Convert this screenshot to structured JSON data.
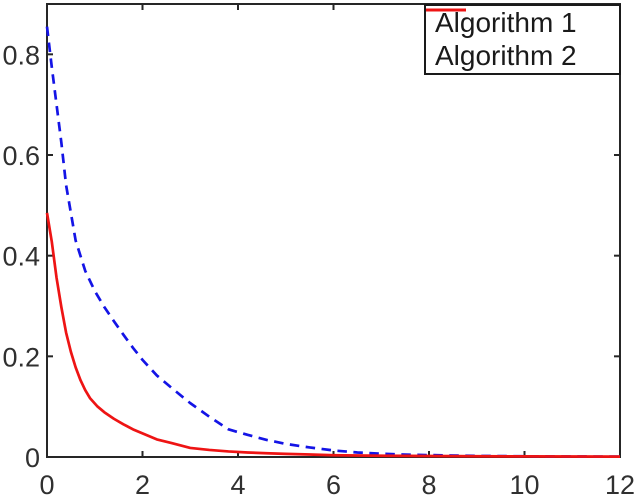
{
  "figure": {
    "background": "#ffffff"
  },
  "chart_data": {
    "type": "line",
    "title": "",
    "xlabel": "",
    "ylabel": "",
    "xlim": [
      0,
      12
    ],
    "ylim": [
      0,
      0.9
    ],
    "grid": false,
    "box": true,
    "tick_direction": "in",
    "axis_color": "#262626",
    "tick_label_color": "#303030",
    "tick_font_size": 27,
    "x_ticks": {
      "values": [
        0,
        2,
        4,
        6,
        8,
        10,
        12
      ],
      "labels": [
        "0",
        "2",
        "4",
        "6",
        "8",
        "10",
        "12"
      ]
    },
    "y_ticks": {
      "values": [
        0,
        0.2,
        0.4,
        0.6,
        0.8
      ],
      "labels": [
        "0",
        "0.2",
        "0.4",
        "0.6",
        "0.8"
      ]
    },
    "legend_position": "top-right",
    "series": [
      {
        "name": "Algorithm 1",
        "color": "#1414e6",
        "style": "dashed",
        "line_width": 2.7,
        "x": [
          0,
          0.1,
          0.2,
          0.3,
          0.4,
          0.5,
          0.6,
          0.8,
          1.0,
          1.2,
          1.4,
          1.6,
          1.8,
          2.0,
          2.3,
          2.6,
          3.0,
          3.4,
          3.8,
          4.2,
          4.6,
          5.0,
          5.5,
          6.0,
          6.5,
          7.0,
          7.5,
          8.0,
          9.0,
          10.0,
          11.0,
          12.0
        ],
        "y": [
          0.855,
          0.775,
          0.7,
          0.625,
          0.54,
          0.485,
          0.43,
          0.37,
          0.33,
          0.298,
          0.27,
          0.243,
          0.217,
          0.193,
          0.162,
          0.138,
          0.107,
          0.08,
          0.055,
          0.044,
          0.034,
          0.026,
          0.019,
          0.013,
          0.009,
          0.0065,
          0.0048,
          0.0038,
          0.0022,
          0.0014,
          0.001,
          0.0008
        ]
      },
      {
        "name": "Algorithm 2",
        "color": "#ee1414",
        "style": "solid",
        "line_width": 2.7,
        "x": [
          0,
          0.1,
          0.2,
          0.3,
          0.4,
          0.5,
          0.6,
          0.7,
          0.8,
          0.9,
          1.05,
          1.2,
          1.4,
          1.6,
          1.8,
          2.0,
          2.3,
          2.6,
          3.0,
          3.4,
          3.8,
          4.2,
          4.6,
          5.0,
          5.5,
          6.0,
          7.0,
          8.0,
          9.0,
          10.0,
          11.0,
          12.0
        ],
        "y": [
          0.485,
          0.428,
          0.356,
          0.298,
          0.247,
          0.209,
          0.178,
          0.153,
          0.133,
          0.117,
          0.101,
          0.089,
          0.076,
          0.065,
          0.055,
          0.047,
          0.035,
          0.028,
          0.018,
          0.014,
          0.011,
          0.009,
          0.0075,
          0.0062,
          0.005,
          0.0035,
          0.0025,
          0.002,
          0.0015,
          0.0012,
          0.001,
          0.0008
        ]
      }
    ]
  }
}
